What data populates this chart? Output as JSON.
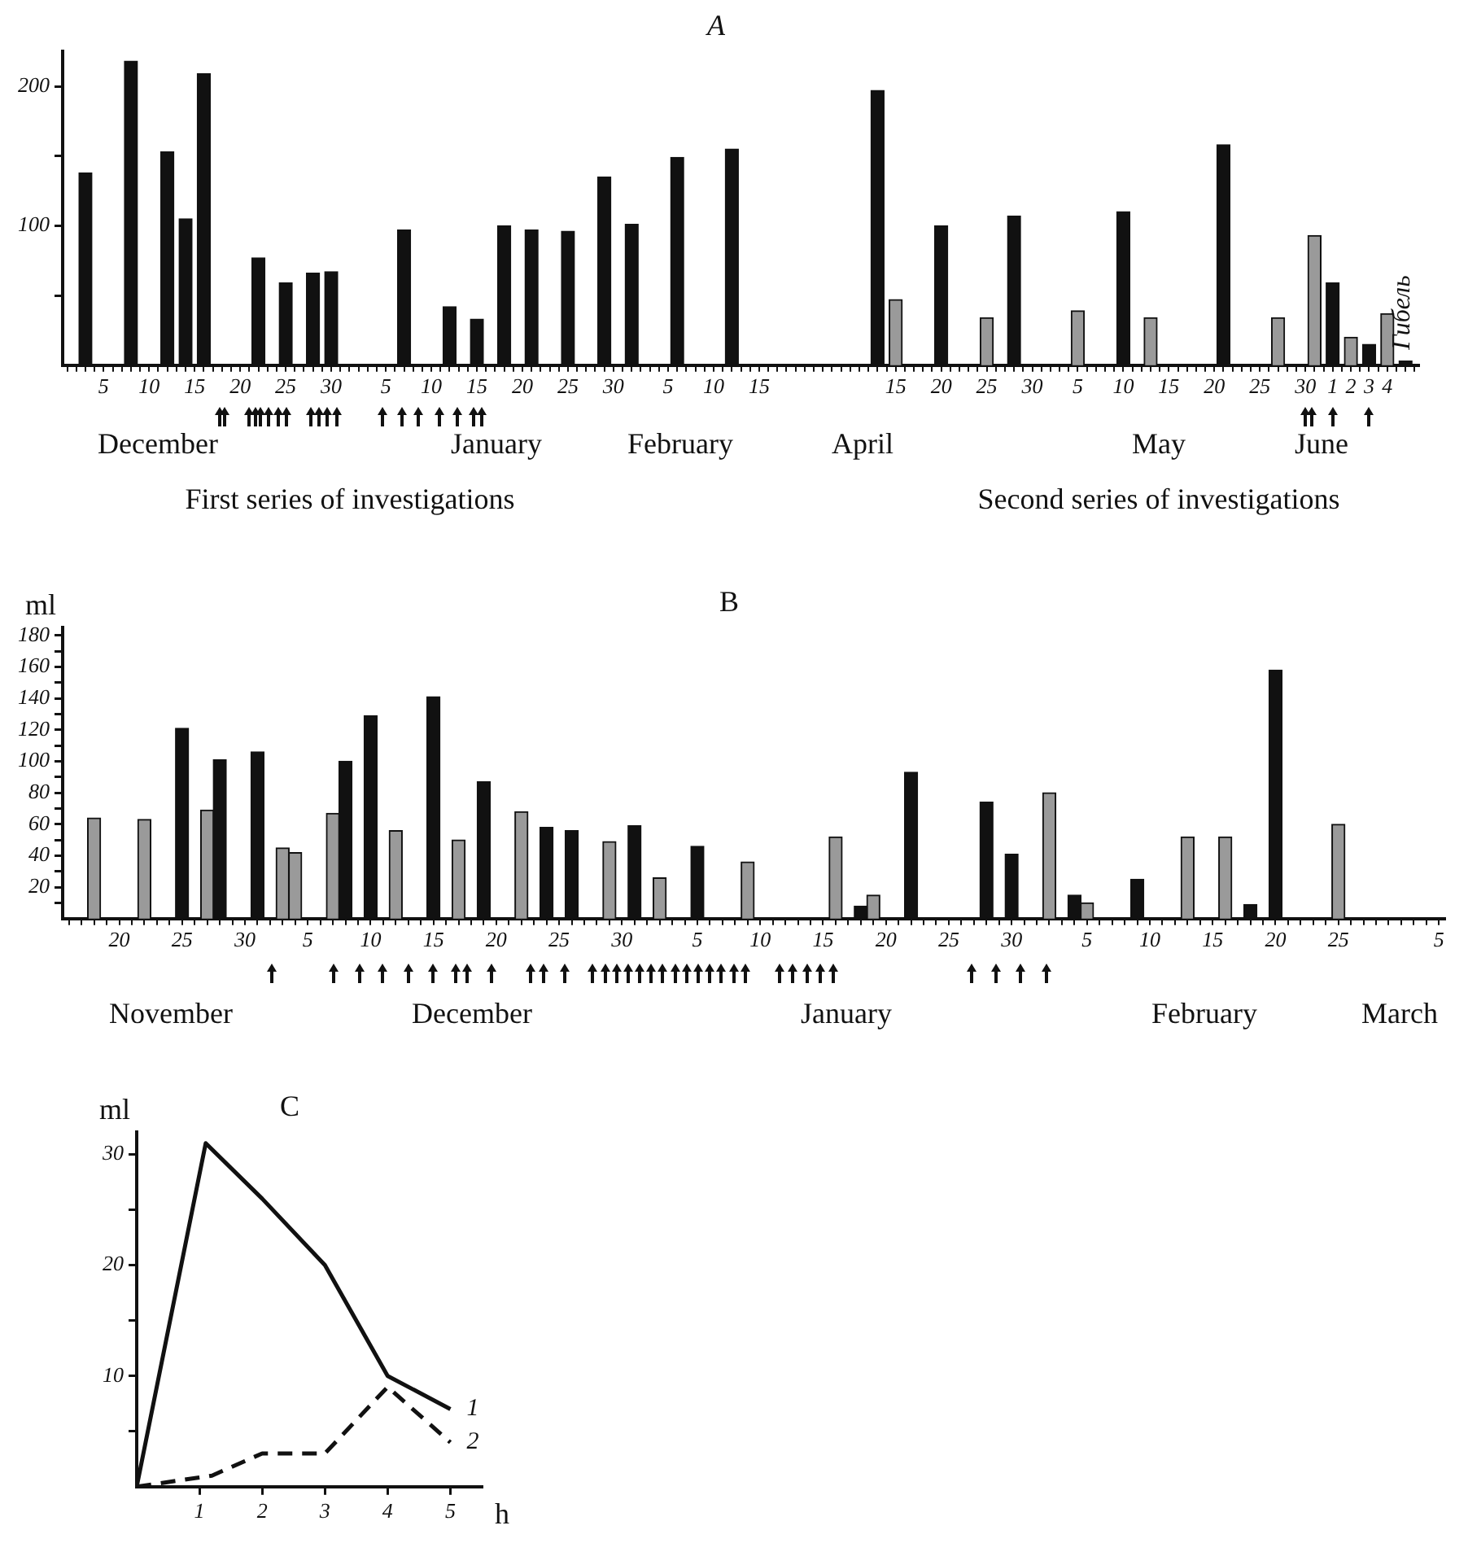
{
  "chart_data": [
    {
      "type": "bar",
      "title": "A",
      "categories": [
        null,
        null,
        null,
        null,
        "5",
        null,
        null,
        null,
        null,
        "10",
        null,
        null,
        null,
        null,
        "15",
        null,
        null,
        null,
        null,
        "20",
        null,
        null,
        null,
        null,
        "25",
        null,
        null,
        null,
        null,
        "30",
        null,
        null,
        null,
        null,
        null,
        "5",
        null,
        null,
        null,
        null,
        "10",
        null,
        null,
        null,
        null,
        "15",
        null,
        null,
        null,
        null,
        "20",
        null,
        null,
        null,
        null,
        "25",
        null,
        null,
        null,
        null,
        "30",
        null,
        null,
        null,
        null,
        null,
        "5",
        null,
        null,
        null,
        null,
        "10",
        null,
        null,
        null,
        null,
        "15",
        null,
        null,
        null,
        null,
        null,
        null,
        null,
        null,
        null,
        null,
        null,
        null,
        null,
        null,
        "15",
        null,
        null,
        null,
        null,
        "20",
        null,
        null,
        null,
        null,
        "25",
        null,
        null,
        null,
        null,
        "30",
        null,
        null,
        null,
        null,
        "5",
        null,
        null,
        null,
        null,
        "10",
        null,
        null,
        null,
        null,
        "15",
        null,
        null,
        null,
        null,
        "20",
        null,
        null,
        null,
        null,
        "25",
        null,
        null,
        null,
        null,
        "30",
        null,
        null,
        "1",
        null,
        "2",
        null,
        "3",
        null,
        "4",
        null,
        null,
        null
      ],
      "series": [
        {
          "color": "#111111",
          "values": [
            null,
            null,
            138,
            null,
            null,
            null,
            null,
            218,
            null,
            null,
            null,
            153,
            null,
            105,
            null,
            209,
            null,
            null,
            null,
            null,
            null,
            77,
            null,
            null,
            59,
            null,
            null,
            66,
            null,
            67,
            null,
            null,
            null,
            null,
            null,
            null,
            null,
            97,
            null,
            null,
            null,
            null,
            42,
            null,
            null,
            33,
            null,
            null,
            100,
            null,
            null,
            97,
            null,
            null,
            null,
            96,
            null,
            null,
            null,
            135,
            null,
            null,
            101,
            null,
            null,
            null,
            null,
            149,
            null,
            null,
            null,
            null,
            null,
            155,
            null,
            null,
            null,
            null,
            null,
            null,
            null,
            null,
            null,
            null,
            null,
            null,
            null,
            null,
            null,
            197,
            null,
            null,
            null,
            null,
            null,
            null,
            100,
            null,
            null,
            null,
            null,
            null,
            null,
            null,
            107,
            null,
            null,
            null,
            null,
            null,
            null,
            null,
            null,
            null,
            null,
            null,
            110,
            null,
            null,
            null,
            null,
            null,
            null,
            null,
            null,
            null,
            null,
            158,
            null,
            null,
            null,
            null,
            null,
            null,
            null,
            null,
            null,
            null,
            null,
            59,
            null,
            null,
            null,
            15,
            null,
            null,
            null,
            3,
            null
          ]
        },
        {
          "color": "#9a9a9a",
          "values": [
            null,
            null,
            null,
            null,
            null,
            null,
            null,
            null,
            null,
            null,
            null,
            null,
            null,
            null,
            null,
            null,
            null,
            null,
            null,
            null,
            null,
            null,
            null,
            null,
            null,
            null,
            null,
            null,
            null,
            null,
            null,
            null,
            null,
            null,
            null,
            null,
            null,
            null,
            null,
            null,
            null,
            null,
            null,
            null,
            null,
            null,
            null,
            null,
            null,
            null,
            null,
            null,
            null,
            null,
            null,
            null,
            null,
            null,
            null,
            null,
            null,
            null,
            null,
            null,
            null,
            null,
            null,
            null,
            null,
            null,
            null,
            null,
            null,
            null,
            null,
            null,
            null,
            null,
            null,
            null,
            null,
            null,
            null,
            null,
            null,
            null,
            null,
            null,
            null,
            null,
            null,
            47,
            null,
            null,
            null,
            null,
            null,
            null,
            null,
            null,
            null,
            34,
            null,
            null,
            null,
            null,
            null,
            null,
            null,
            null,
            null,
            39,
            null,
            null,
            null,
            null,
            null,
            null,
            null,
            34,
            null,
            null,
            null,
            null,
            null,
            null,
            null,
            null,
            null,
            null,
            null,
            null,
            null,
            34,
            null,
            null,
            null,
            93,
            null,
            null,
            null,
            20,
            null,
            null,
            null,
            37,
            null,
            null,
            null
          ]
        }
      ],
      "ylim": [
        0,
        225
      ],
      "yticks": [
        {
          "value": 50,
          "label": null
        },
        100,
        {
          "value": 150,
          "label": null
        },
        200
      ],
      "grid": false,
      "legend": false,
      "annotations": [
        "December",
        "January",
        "February",
        "April",
        "May",
        "June",
        "First series of investigations",
        "Second series of investigations",
        "Гибель"
      ]
    },
    {
      "type": "bar",
      "title": "B",
      "ylabel": "ml",
      "categories": [
        null,
        null,
        null,
        null,
        "20",
        null,
        null,
        null,
        null,
        "25",
        null,
        null,
        null,
        null,
        "30",
        null,
        null,
        null,
        null,
        "5",
        null,
        null,
        null,
        null,
        "10",
        null,
        null,
        null,
        null,
        "15",
        null,
        null,
        null,
        null,
        "20",
        null,
        null,
        null,
        null,
        "25",
        null,
        null,
        null,
        null,
        "30",
        null,
        null,
        null,
        null,
        null,
        "5",
        null,
        null,
        null,
        null,
        "10",
        null,
        null,
        null,
        null,
        "15",
        null,
        null,
        null,
        null,
        "20",
        null,
        null,
        null,
        null,
        "25",
        null,
        null,
        null,
        null,
        "30",
        null,
        null,
        null,
        null,
        null,
        "5",
        null,
        null,
        null,
        null,
        "10",
        null,
        null,
        null,
        null,
        "15",
        null,
        null,
        null,
        null,
        "20",
        null,
        null,
        null,
        null,
        "25",
        null,
        null,
        null,
        null,
        null,
        null,
        null,
        "5"
      ],
      "series": [
        {
          "color": "#111111",
          "values": [
            null,
            null,
            null,
            null,
            null,
            null,
            null,
            null,
            null,
            121,
            null,
            null,
            101,
            null,
            null,
            106,
            null,
            null,
            null,
            null,
            null,
            null,
            100,
            null,
            129,
            null,
            null,
            null,
            null,
            141,
            null,
            null,
            null,
            87,
            null,
            null,
            null,
            null,
            58,
            null,
            56,
            null,
            null,
            null,
            null,
            59,
            null,
            null,
            null,
            null,
            46,
            null,
            null,
            null,
            null,
            null,
            null,
            null,
            null,
            null,
            null,
            null,
            null,
            8,
            null,
            null,
            null,
            93,
            null,
            null,
            null,
            null,
            null,
            74,
            null,
            41,
            null,
            null,
            null,
            null,
            15,
            null,
            null,
            null,
            null,
            25,
            null,
            null,
            null,
            null,
            null,
            null,
            null,
            null,
            9,
            null,
            158,
            null,
            null,
            null,
            null,
            null,
            null,
            null,
            null,
            null,
            null,
            null,
            null,
            null
          ]
        },
        {
          "color": "#9a9a9a",
          "values": [
            null,
            null,
            64,
            null,
            null,
            null,
            63,
            null,
            null,
            null,
            null,
            69,
            null,
            null,
            null,
            null,
            null,
            45,
            42,
            null,
            null,
            67,
            null,
            null,
            null,
            null,
            56,
            null,
            null,
            null,
            null,
            50,
            null,
            null,
            null,
            null,
            68,
            null,
            null,
            null,
            null,
            null,
            null,
            49,
            null,
            null,
            null,
            26,
            null,
            null,
            null,
            null,
            null,
            null,
            36,
            null,
            null,
            null,
            null,
            null,
            null,
            52,
            null,
            null,
            15,
            null,
            null,
            null,
            null,
            null,
            null,
            null,
            null,
            null,
            null,
            null,
            null,
            null,
            80,
            null,
            null,
            10,
            null,
            null,
            null,
            null,
            null,
            null,
            null,
            52,
            null,
            null,
            52,
            null,
            null,
            null,
            null,
            null,
            null,
            null,
            null,
            60,
            null,
            null,
            null,
            null,
            null,
            null,
            null,
            null
          ]
        }
      ],
      "ylim": [
        0,
        185
      ],
      "yticks": [
        {
          "value": 10,
          "label": null
        },
        20,
        {
          "value": 30,
          "label": null
        },
        40,
        {
          "value": 50,
          "label": null
        },
        60,
        {
          "value": 70,
          "label": null
        },
        80,
        {
          "value": 90,
          "label": null
        },
        100,
        {
          "value": 110,
          "label": null
        },
        120,
        {
          "value": 130,
          "label": null
        },
        140,
        {
          "value": 150,
          "label": null
        },
        160,
        {
          "value": 170,
          "label": null
        },
        180
      ],
      "grid": false,
      "legend": false,
      "annotations": [
        "November",
        "December",
        "January",
        "February",
        "March"
      ]
    },
    {
      "type": "line",
      "title": "C",
      "xlabel": "h",
      "ylabel": "ml",
      "marker": "none",
      "grid": false,
      "legend": false,
      "series": [
        {
          "name": "1",
          "color": "#111111",
          "line_style": "solid",
          "x": [
            0,
            1.1,
            2,
            3,
            4,
            5
          ],
          "values": [
            0,
            31,
            26,
            20,
            10,
            7
          ]
        },
        {
          "name": "2",
          "color": "#111111",
          "line_style": "dashed",
          "x": [
            0,
            1.2,
            2,
            3,
            4,
            5
          ],
          "values": [
            0,
            1,
            3,
            3,
            9,
            4
          ]
        }
      ],
      "xlim": [
        0,
        5.5
      ],
      "xticks": [
        1,
        2,
        3,
        4,
        5
      ],
      "ylim": [
        0,
        32
      ],
      "yticks": [
        {
          "value": 5,
          "label": null
        },
        10,
        {
          "value": 15,
          "label": null
        },
        20,
        {
          "value": 25,
          "label": null
        },
        30
      ]
    }
  ]
}
